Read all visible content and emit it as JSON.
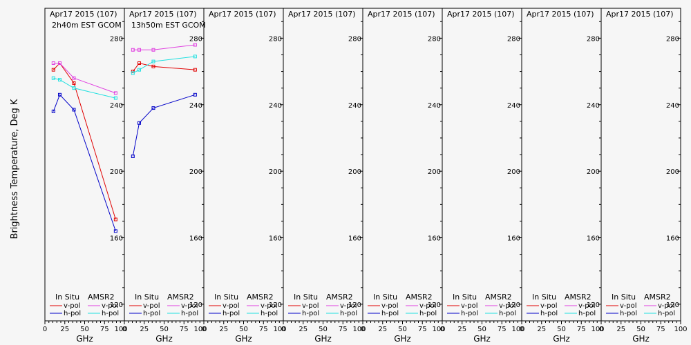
{
  "ylabel": "Brightness Temperature, Deg K",
  "xlabel": "GHz",
  "colors": {
    "in_situ_vpol": "#e00000",
    "in_situ_hpol": "#0000c8",
    "amsr2_vpol": "#e040e0",
    "amsr2_hpol": "#20e0e0"
  },
  "legend": {
    "in_situ": "In Situ",
    "amsr2": "AMSR2",
    "vpol": "v-pol",
    "hpol": "h-pol"
  },
  "chart_data": [
    {
      "type": "line",
      "title": "Apr17 2015 (107)",
      "subtitle": "2h40m EST GCOM",
      "xticks": [
        "0",
        "25",
        "50",
        "75",
        "100"
      ],
      "yticks": [
        "120",
        "160",
        "200",
        "240",
        "280"
      ],
      "xlim": [
        0,
        100
      ],
      "ylim": [
        110,
        298
      ],
      "series": [
        {
          "name": "In Situ v-pol",
          "x": [
            10.7,
            18.7,
            36.5,
            89
          ],
          "y": [
            261,
            265,
            253,
            171
          ]
        },
        {
          "name": "In Situ h-pol",
          "x": [
            10.7,
            18.7,
            36.5,
            89
          ],
          "y": [
            236,
            246,
            237,
            164
          ]
        },
        {
          "name": "AMSR2 v-pol",
          "x": [
            10.7,
            18.7,
            36.5,
            89
          ],
          "y": [
            265,
            265,
            256,
            247
          ]
        },
        {
          "name": "AMSR2 h-pol",
          "x": [
            10.7,
            18.7,
            36.5,
            89
          ],
          "y": [
            256,
            255,
            250,
            244
          ]
        }
      ]
    },
    {
      "type": "line",
      "title": "Apr17 2015 (107)",
      "subtitle": "13h50m EST GCOM",
      "xticks": [
        "0",
        "25",
        "50",
        "75",
        "100"
      ],
      "yticks": [
        "120",
        "160",
        "200",
        "240",
        "280"
      ],
      "xlim": [
        0,
        100
      ],
      "ylim": [
        110,
        298
      ],
      "series": [
        {
          "name": "In Situ v-pol",
          "x": [
            10.7,
            18.7,
            36.5,
            89
          ],
          "y": [
            260,
            265,
            263,
            261
          ]
        },
        {
          "name": "In Situ h-pol",
          "x": [
            10.7,
            18.7,
            36.5,
            89
          ],
          "y": [
            209,
            229,
            238,
            246
          ]
        },
        {
          "name": "AMSR2 v-pol",
          "x": [
            10.7,
            18.7,
            36.5,
            89
          ],
          "y": [
            273,
            273,
            273,
            276
          ]
        },
        {
          "name": "AMSR2 h-pol",
          "x": [
            10.7,
            18.7,
            36.5,
            89
          ],
          "y": [
            259,
            261,
            266,
            269
          ]
        }
      ]
    },
    {
      "type": "line",
      "title": "Apr17 2015 (107)",
      "subtitle": "",
      "xticks": [
        "0",
        "25",
        "50",
        "75",
        "100"
      ],
      "yticks": [
        "120",
        "160",
        "200",
        "240",
        "280"
      ],
      "xlim": [
        0,
        100
      ],
      "ylim": [
        110,
        298
      ],
      "series": []
    },
    {
      "type": "line",
      "title": "Apr17 2015 (107)",
      "subtitle": "",
      "xticks": [
        "0",
        "25",
        "50",
        "75",
        "100"
      ],
      "yticks": [
        "120",
        "160",
        "200",
        "240",
        "280"
      ],
      "xlim": [
        0,
        100
      ],
      "ylim": [
        110,
        298
      ],
      "series": []
    },
    {
      "type": "line",
      "title": "Apr17 2015 (107)",
      "subtitle": "",
      "xticks": [
        "0",
        "25",
        "50",
        "75",
        "100"
      ],
      "yticks": [
        "120",
        "160",
        "200",
        "240",
        "280"
      ],
      "xlim": [
        0,
        100
      ],
      "ylim": [
        110,
        298
      ],
      "series": []
    },
    {
      "type": "line",
      "title": "Apr17 2015 (107)",
      "subtitle": "",
      "xticks": [
        "0",
        "25",
        "50",
        "75",
        "100"
      ],
      "yticks": [
        "120",
        "160",
        "200",
        "240",
        "280"
      ],
      "xlim": [
        0,
        100
      ],
      "ylim": [
        110,
        298
      ],
      "series": []
    },
    {
      "type": "line",
      "title": "Apr17 2015 (107)",
      "subtitle": "",
      "xticks": [
        "0",
        "25",
        "50",
        "75",
        "100"
      ],
      "yticks": [
        "120",
        "160",
        "200",
        "240",
        "280"
      ],
      "xlim": [
        0,
        100
      ],
      "ylim": [
        110,
        298
      ],
      "series": []
    },
    {
      "type": "line",
      "title": "Apr17 2015 (107)",
      "subtitle": "",
      "xticks": [
        "0",
        "25",
        "50",
        "75",
        "100"
      ],
      "yticks": [
        "120",
        "160",
        "200",
        "240",
        "280"
      ],
      "xlim": [
        0,
        100
      ],
      "ylim": [
        110,
        298
      ],
      "series": []
    }
  ]
}
